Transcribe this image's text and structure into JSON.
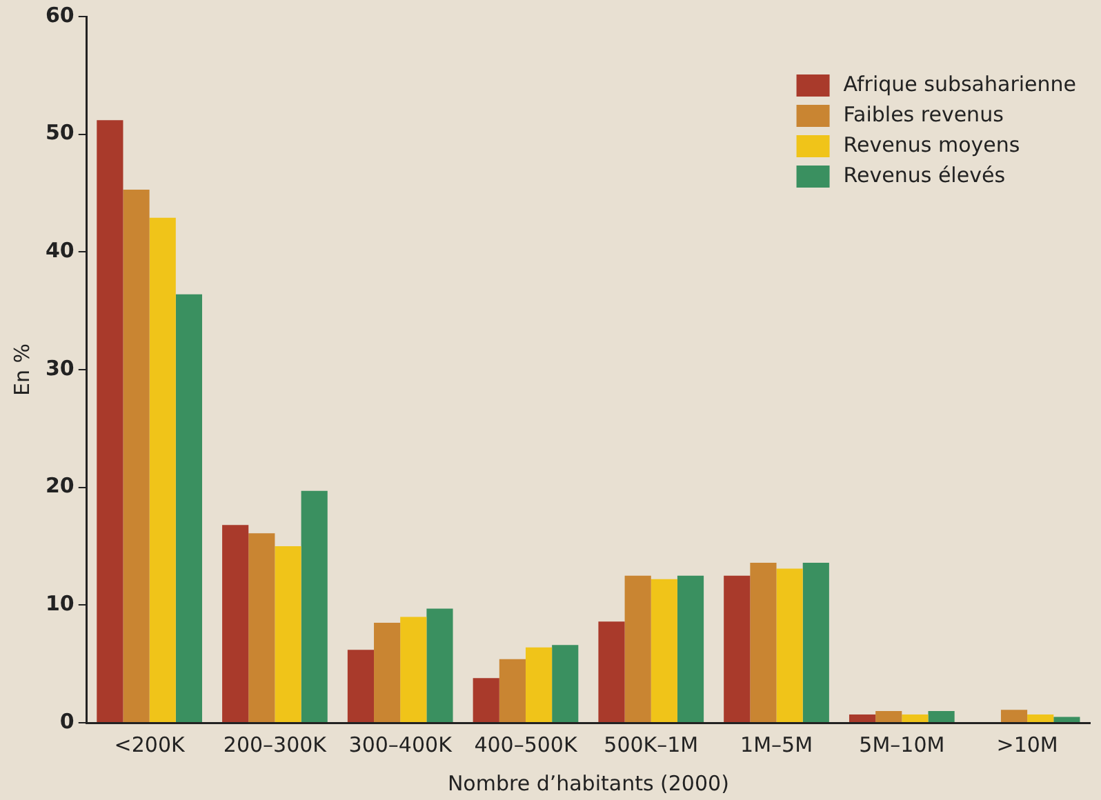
{
  "chart_data": {
    "type": "bar",
    "xlabel": "Nombre d’habitants (2000)",
    "ylabel": "En %",
    "categories": [
      "<200K",
      "200–300K",
      "300–400K",
      "400–500K",
      "500K–1M",
      "1M–5M",
      "5M–10M",
      ">10M"
    ],
    "series": [
      {
        "name": "Afrique subsaharienne",
        "color": "#a93a2b",
        "values": [
          51.2,
          16.8,
          6.2,
          3.8,
          8.6,
          12.5,
          0.7,
          0
        ]
      },
      {
        "name": "Faibles revenus",
        "color": "#c98532",
        "values": [
          45.3,
          16.1,
          8.5,
          5.4,
          12.5,
          13.6,
          1.0,
          1.1
        ]
      },
      {
        "name": "Revenus moyens",
        "color": "#f0c419",
        "values": [
          42.9,
          15.0,
          9.0,
          6.4,
          12.2,
          13.1,
          0.7,
          0.7
        ]
      },
      {
        "name": "Revenus élevés",
        "color": "#3a9060",
        "values": [
          36.4,
          19.7,
          9.7,
          6.6,
          12.5,
          13.6,
          1.0,
          0.5
        ]
      }
    ],
    "ylim": [
      0,
      60
    ],
    "yticks": [
      0,
      10,
      20,
      30,
      40,
      50,
      60
    ],
    "grid": false,
    "legend": "top right"
  }
}
